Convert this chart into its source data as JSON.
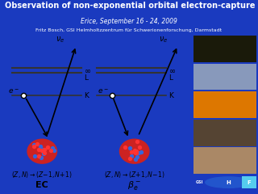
{
  "title": "Observation of non-exponential orbital electron-capture decay",
  "subtitle": "Erice, September 16 - 24, 2009",
  "author": "Fritz Bosch, GSI Helmholtzzentrum für Schwerionenforschung, Darmstadt",
  "bg_color": "#1a3abf",
  "title_color": "white",
  "subtitle_color": "white",
  "author_color": "white",
  "title_fontsize": 7.0,
  "subtitle_fontsize": 5.5,
  "author_fontsize": 4.5,
  "img_colors": [
    "#111111",
    "#2244aa",
    "#cc6600",
    "#443322",
    "#aa8866"
  ],
  "logo_gsi_color": "#222222",
  "logo_f_color": "#33aaee"
}
